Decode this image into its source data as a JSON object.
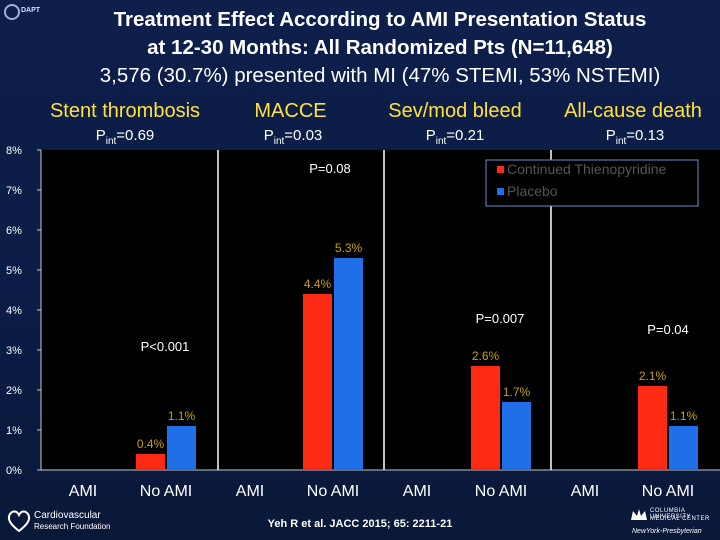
{
  "header": {
    "logo_text": "DAPT",
    "title_line1": "Treatment Effect According to AMI Presentation Status",
    "title_line2": "at 12-30 Months: All Randomized Pts (N=11,648)",
    "title_line3": "3,576 (30.7%) presented with MI (47% STEMI, 53% NSTEMI)"
  },
  "panels": [
    {
      "title": "Stent thrombosis",
      "pint_label": "P",
      "pint_sub": "int",
      "pint_value": "=0.69",
      "pvalue": "P<0.001"
    },
    {
      "title": "MACCE",
      "pint_label": "P",
      "pint_sub": "int",
      "pint_value": "=0.03",
      "pvalue": "P=0.08"
    },
    {
      "title": "Sev/mod bleed",
      "pint_label": "P",
      "pint_sub": "int",
      "pint_value": "=0.21",
      "pvalue": "P=0.007"
    },
    {
      "title": "All-cause death",
      "pint_label": "P",
      "pint_sub": "int",
      "pint_value": "=0.13",
      "pvalue": "P=0.04"
    }
  ],
  "chart_data": {
    "type": "bar",
    "categories": [
      "AMI",
      "No AMI",
      "AMI",
      "No AMI",
      "AMI",
      "No AMI",
      "AMI",
      "No AMI"
    ],
    "series": [
      {
        "name": "Continued Thienopyridine",
        "color": "#ff2a14",
        "values": [
          null,
          0.4,
          null,
          4.4,
          null,
          2.6,
          null,
          2.1
        ],
        "labels": [
          "",
          "0.4%",
          "",
          "4.4%",
          "",
          "2.6%",
          "",
          "2.1%"
        ]
      },
      {
        "name": "Placebo",
        "color": "#1f6fe8",
        "values": [
          null,
          1.1,
          null,
          5.3,
          null,
          1.7,
          null,
          1.1
        ],
        "labels": [
          "",
          "1.1%",
          "",
          "5.3%",
          "",
          "1.7%",
          "",
          "1.1%"
        ]
      }
    ],
    "yticks": [
      "0%",
      "1%",
      "2%",
      "3%",
      "4%",
      "5%",
      "6%",
      "7%",
      "8%"
    ],
    "ylim": [
      0,
      8
    ],
    "legend_position": "top-right",
    "grid": false
  },
  "footer": {
    "org_line1": "Cardiovascular",
    "org_line2": "Research Foundation",
    "citation": "Yeh R et al. JACC 2015; 65: 2211-21",
    "cu_line1": "COLUMBIA UNIVERSITY",
    "cu_line2": "MEDICAL CENTER",
    "nyp": "NewYork-Presbyterian"
  }
}
